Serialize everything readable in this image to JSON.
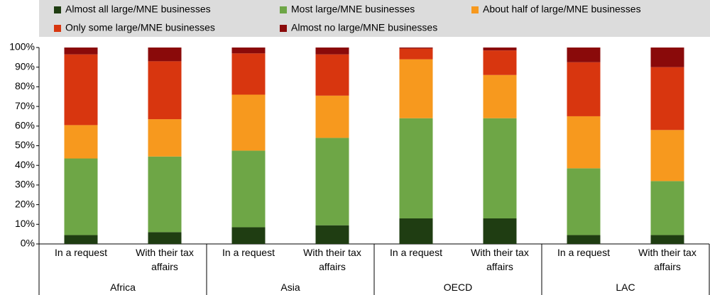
{
  "chart_data": {
    "type": "stacked-bar",
    "categories": [
      "In a request",
      "With their tax affairs",
      "In a request",
      "With their tax affairs",
      "In a request",
      "With their tax affairs",
      "In a request",
      "With their tax affairs"
    ],
    "groups": [
      "Africa",
      "Asia",
      "OECD",
      "LAC"
    ],
    "series": [
      {
        "name": "Almost all large/MNE businesses",
        "color": "#1f3d12",
        "values": [
          4.5,
          6,
          8.5,
          9.5,
          13,
          13,
          4.5,
          4.5
        ]
      },
      {
        "name": "Most large/MNE businesses",
        "color": "#6ea646",
        "values": [
          39,
          38.5,
          39,
          44.5,
          51,
          51,
          34,
          27.5
        ]
      },
      {
        "name": "About half of large/MNE businesses",
        "color": "#f7991e",
        "values": [
          17,
          19,
          28.5,
          21.5,
          30,
          22,
          26.5,
          26
        ]
      },
      {
        "name": "Only some large/MNE businesses",
        "color": "#d8360f",
        "values": [
          36,
          29.5,
          21,
          21,
          5.5,
          12.5,
          27.5,
          32
        ]
      },
      {
        "name": "Almost no large/MNE businesses",
        "color": "#8a0a0a",
        "values": [
          3.5,
          7,
          3,
          3.5,
          0.5,
          1.5,
          7.5,
          10
        ]
      }
    ],
    "ylim": [
      0,
      100
    ],
    "yticks": [
      {
        "value": 0,
        "label": "0%"
      },
      {
        "value": 10,
        "label": "10%"
      },
      {
        "value": 20,
        "label": "20%"
      },
      {
        "value": 30,
        "label": "30%"
      },
      {
        "value": 40,
        "label": "40%"
      },
      {
        "value": 50,
        "label": "50%"
      },
      {
        "value": 60,
        "label": "60%"
      },
      {
        "value": 70,
        "label": "70%"
      },
      {
        "value": 80,
        "label": "80%"
      },
      {
        "value": 90,
        "label": "90%"
      },
      {
        "value": 100,
        "label": "100%"
      }
    ]
  }
}
